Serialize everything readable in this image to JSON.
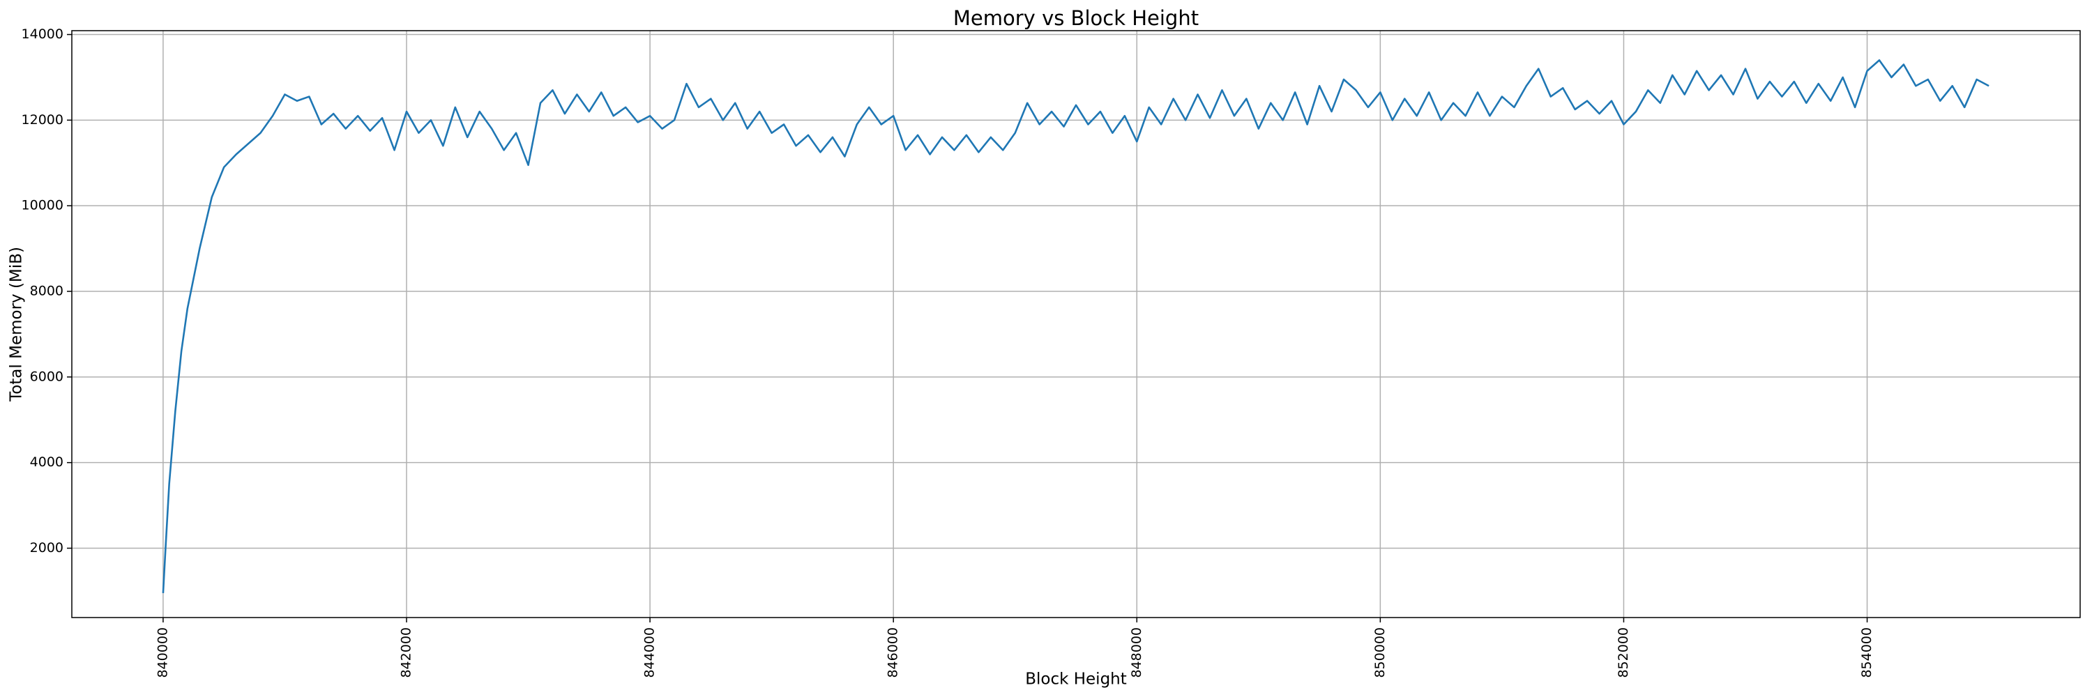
{
  "chart_data": {
    "type": "line",
    "title": "Memory vs Block Height",
    "x_label": "Block Height",
    "y_label": "Total Memory (MiB)",
    "x": [
      840000,
      840020,
      840050,
      840100,
      840150,
      840200,
      840300,
      840400,
      840500,
      840600,
      840700,
      840800,
      840900,
      841000,
      841100,
      841200,
      841300,
      841400,
      841500,
      841600,
      841700,
      841800,
      841900,
      842000,
      842100,
      842200,
      842300,
      842400,
      842500,
      842600,
      842700,
      842800,
      842900,
      843000,
      843100,
      843200,
      843300,
      843400,
      843500,
      843600,
      843700,
      843800,
      843900,
      844000,
      844100,
      844200,
      844300,
      844400,
      844500,
      844600,
      844700,
      844800,
      844900,
      845000,
      845100,
      845200,
      845300,
      845400,
      845500,
      845600,
      845700,
      845800,
      845900,
      846000,
      846100,
      846200,
      846300,
      846400,
      846500,
      846600,
      846700,
      846800,
      846900,
      847000,
      847100,
      847200,
      847300,
      847400,
      847500,
      847600,
      847700,
      847800,
      847900,
      848000,
      848100,
      848200,
      848300,
      848400,
      848500,
      848600,
      848700,
      848800,
      848900,
      849000,
      849100,
      849200,
      849300,
      849400,
      849500,
      849600,
      849700,
      849800,
      849900,
      850000,
      850100,
      850200,
      850300,
      850400,
      850500,
      850600,
      850700,
      850800,
      850900,
      851000,
      851100,
      851200,
      851300,
      851400,
      851500,
      851600,
      851700,
      851800,
      851900,
      852000,
      852100,
      852200,
      852300,
      852400,
      852500,
      852600,
      852700,
      852800,
      852900,
      853000,
      853100,
      853200,
      853300,
      853400,
      853500,
      853600,
      853700,
      853800,
      853900,
      854000,
      854100,
      854200,
      854300,
      854400,
      854500,
      854600,
      854700,
      854800,
      854900,
      855000
    ],
    "values": [
      950,
      2000,
      3500,
      5200,
      6600,
      7600,
      9000,
      10200,
      10900,
      11200,
      11450,
      11700,
      12100,
      12600,
      12450,
      12550,
      11900,
      12150,
      11800,
      12100,
      11750,
      12050,
      11300,
      12200,
      11700,
      12000,
      11400,
      12300,
      11600,
      12200,
      11800,
      11300,
      11700,
      10950,
      12400,
      12700,
      12150,
      12600,
      12200,
      12650,
      12100,
      12300,
      11950,
      12100,
      11800,
      12000,
      12850,
      12300,
      12500,
      12000,
      12400,
      11800,
      12200,
      11700,
      11900,
      11400,
      11650,
      11250,
      11600,
      11150,
      11900,
      12300,
      11900,
      12100,
      11300,
      11650,
      11200,
      11600,
      11300,
      11650,
      11250,
      11600,
      11300,
      11700,
      12400,
      11900,
      12200,
      11850,
      12350,
      11900,
      12200,
      11700,
      12100,
      11500,
      12300,
      11900,
      12500,
      12000,
      12600,
      12050,
      12700,
      12100,
      12500,
      11800,
      12400,
      12000,
      12650,
      11900,
      12800,
      12200,
      12950,
      12700,
      12300,
      12650,
      12000,
      12500,
      12100,
      12650,
      12000,
      12400,
      12100,
      12650,
      12100,
      12550,
      12300,
      12800,
      13200,
      12550,
      12750,
      12250,
      12450,
      12150,
      12450,
      11900,
      12200,
      12700,
      12400,
      13050,
      12600,
      13150,
      12700,
      13050,
      12600,
      13200,
      12500,
      12900,
      12550,
      12900,
      12400,
      12850,
      12450,
      13000,
      12300,
      13150,
      13400,
      13000,
      13300,
      12800,
      12950,
      12450,
      12800,
      12300,
      12950,
      12800
    ],
    "color": "#1f77b4",
    "xlim": [
      839250,
      855750
    ],
    "xticks": [
      840000,
      842000,
      844000,
      846000,
      848000,
      850000,
      852000,
      854000
    ],
    "ylim": [
      380,
      14090
    ],
    "yticks": [
      2000,
      4000,
      6000,
      8000,
      10000,
      12000,
      14000
    ],
    "grid": true
  }
}
